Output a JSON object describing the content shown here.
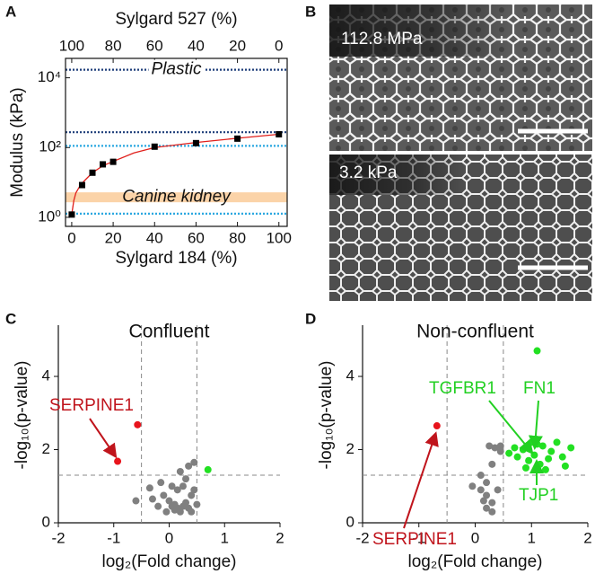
{
  "panel_labels": [
    "A",
    "B",
    "C",
    "D"
  ],
  "images": [
    {
      "label": "112.8 MPa"
    },
    {
      "label": "3.2 kPa"
    }
  ],
  "chart_data": [
    {
      "type": "line",
      "xlabel": "Sylgard 184 (%)",
      "x2label": "Sylgard 527 (%)",
      "ylabel": "Modulus (kPa)",
      "xlim": [
        -3,
        104
      ],
      "xticks": [
        0,
        20,
        40,
        60,
        80,
        100
      ],
      "x2lim": [
        103,
        -4
      ],
      "x2ticks": [
        100,
        80,
        60,
        40,
        20,
        0
      ],
      "ylim": [
        0.55,
        36000
      ],
      "yscale": "log",
      "yticks": [
        {
          "value": 1,
          "label": "10⁰"
        },
        {
          "value": 100,
          "label": "10²"
        },
        {
          "value": 10000,
          "label": "10⁴"
        }
      ],
      "series": [
        {
          "kind": "markers",
          "color": "#000000",
          "x": [
            0,
            5,
            10,
            15,
            20,
            40,
            60,
            80,
            100
          ],
          "values": [
            1.2,
            8.4,
            19,
            33,
            39,
            106,
            134,
            180,
            240
          ]
        },
        {
          "kind": "line",
          "color": "#e0201c",
          "x": [
            0,
            1,
            2,
            4,
            6,
            10,
            15,
            20,
            30,
            40,
            60,
            80,
            100
          ],
          "values": [
            1.2,
            3,
            5,
            8,
            11,
            19,
            30,
            40,
            70,
            100,
            140,
            185,
            240
          ]
        }
      ],
      "reference_lines": [
        {
          "value": 17000,
          "color": "#1f3f7a"
        },
        {
          "value": 275,
          "color": "#1f3f7a"
        },
        {
          "value": 112,
          "color": "#2aa7e0"
        },
        {
          "value": 1.27,
          "color": "#2aa7e0"
        }
      ],
      "bands": [
        {
          "range": [
            2.7,
            5.2
          ],
          "color": "#fbd3a8"
        }
      ],
      "annotations": [
        "Plastic",
        "Canine kidney"
      ]
    },
    {
      "type": "scatter",
      "title": "Confluent",
      "xlabel": "log₂(Fold change)",
      "ylabel": "-log₁₀(p-value)",
      "xlim": [
        -2,
        2
      ],
      "ylim": [
        0,
        5.4
      ],
      "xticks": [
        -2,
        -1,
        0,
        1,
        2
      ],
      "yticks": [
        0,
        2,
        4
      ],
      "thresholds": {
        "x": [
          -0.5,
          0.5
        ],
        "y": 1.3
      },
      "series": [
        {
          "color": "#808080",
          "x": [
            -0.3,
            -0.6,
            -0.35,
            -0.15,
            -0.1,
            0,
            0.05,
            0.1,
            0.15,
            0.2,
            0.25,
            0.3,
            0.35,
            0.4,
            0.45,
            0.3,
            0.2,
            0.35,
            0.45,
            0.1,
            -0.05,
            0.15,
            0.25,
            0.4,
            0.5,
            -0.2,
            0.05
          ],
          "values": [
            0.65,
            0.6,
            0.95,
            1.1,
            0.75,
            0.6,
            0.45,
            0.35,
            0.4,
            0.3,
            0.45,
            0.55,
            0.4,
            0.75,
            0.9,
            1.2,
            1.4,
            1.55,
            1.65,
            0.5,
            0.3,
            0.9,
            1.0,
            0.3,
            0.5,
            0.45,
            1.0
          ]
        },
        {
          "color": "#e8141c",
          "x": [
            -0.93,
            -0.57
          ],
          "values": [
            1.68,
            2.68
          ]
        },
        {
          "color": "#22e022",
          "x": [
            0.7
          ],
          "values": [
            1.45
          ]
        }
      ],
      "annotations": [
        {
          "text": "SERPINE1",
          "color": "#c0141c"
        }
      ]
    },
    {
      "type": "scatter",
      "title": "Non-confluent",
      "xlabel": "log₂(Fold change)",
      "ylabel": "-log₁₀(p-value)",
      "xlim": [
        -2,
        2
      ],
      "ylim": [
        0,
        5.4
      ],
      "xticks": [
        -2,
        -1,
        0,
        1,
        2
      ],
      "yticks": [
        0,
        2,
        4
      ],
      "thresholds": {
        "x": [
          -0.5,
          0.5
        ],
        "y": 1.3
      },
      "series": [
        {
          "color": "#808080",
          "x": [
            0.1,
            0.2,
            0.3,
            0.35,
            0.25,
            0.45,
            0.1,
            0.2,
            0.3,
            0.15,
            -0.05,
            0.4,
            0.3,
            0.2,
            0.45
          ],
          "values": [
            1.3,
            1.1,
            1.6,
            2.05,
            2.1,
            2.1,
            0.9,
            0.75,
            0.55,
            0.6,
            1.0,
            0.9,
            0.3,
            0.4,
            1.95
          ]
        },
        {
          "color": "#e8141c",
          "x": [
            -0.68
          ],
          "values": [
            2.65
          ]
        },
        {
          "color": "#22e022",
          "x": [
            0.6,
            0.7,
            0.75,
            0.85,
            0.95,
            1.0,
            1.05,
            1.1,
            1.15,
            1.2,
            1.3,
            1.35,
            1.45,
            1.55,
            1.6,
            1.7,
            0.9,
            1.25,
            1.1
          ],
          "values": [
            1.9,
            2.05,
            1.8,
            2.0,
            1.7,
            2.2,
            1.85,
            2.15,
            1.6,
            2.1,
            1.75,
            1.95,
            2.2,
            1.8,
            1.55,
            2.05,
            1.5,
            1.45,
            4.7
          ]
        }
      ],
      "annotations": [
        {
          "text": "TGFBR1",
          "color": "#22d022"
        },
        {
          "text": "FN1",
          "color": "#22d022"
        },
        {
          "text": "TJP1",
          "color": "#22d022"
        },
        {
          "text": "SERPINE1",
          "color": "#c0141c"
        }
      ]
    }
  ]
}
